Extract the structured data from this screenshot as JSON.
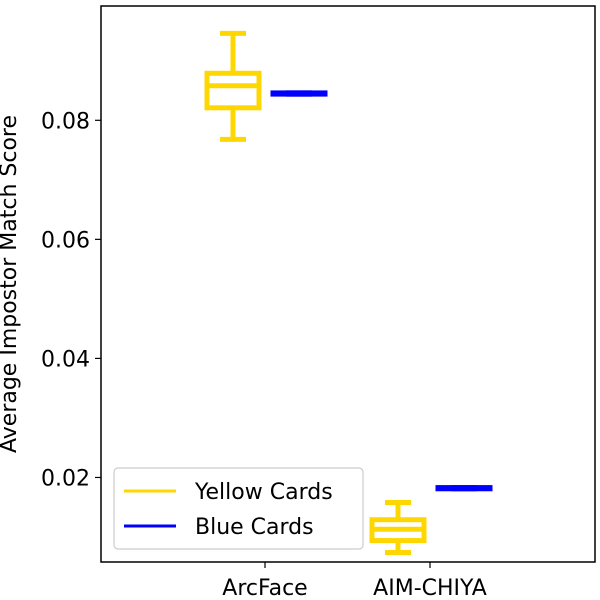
{
  "chart_data": {
    "type": "box",
    "title": "",
    "xlabel": "",
    "ylabel": "Average Impostor Match Score",
    "categories": [
      "ArcFace",
      "AIM-CHIYA"
    ],
    "ylim": [
      0.0058,
      0.0992
    ],
    "yticks": [
      0.02,
      0.04,
      0.06,
      0.08
    ],
    "ytick_labels": [
      "0.02",
      "0.04",
      "0.06",
      "0.08"
    ],
    "grid": false,
    "legend": {
      "position": "lower-left"
    },
    "series": [
      {
        "name": "Yellow Cards",
        "color": "#FFD700",
        "boxes": [
          {
            "category": "ArcFace",
            "whisker_low": 0.0768,
            "q1": 0.0821,
            "median": 0.0858,
            "q3": 0.0879,
            "whisker_high": 0.0946
          },
          {
            "category": "AIM-CHIYA",
            "whisker_low": 0.0074,
            "q1": 0.0094,
            "median": 0.0113,
            "q3": 0.0129,
            "whisker_high": 0.0158
          }
        ]
      },
      {
        "name": "Blue Cards",
        "color": "#0000FF",
        "boxes": [
          {
            "category": "ArcFace",
            "whisker_low": 0.0844,
            "q1": 0.0844,
            "median": 0.0845,
            "q3": 0.0846,
            "whisker_high": 0.0846
          },
          {
            "category": "AIM-CHIYA",
            "whisker_low": 0.0181,
            "q1": 0.0181,
            "median": 0.0182,
            "q3": 0.0183,
            "whisker_high": 0.0183
          }
        ]
      }
    ]
  }
}
